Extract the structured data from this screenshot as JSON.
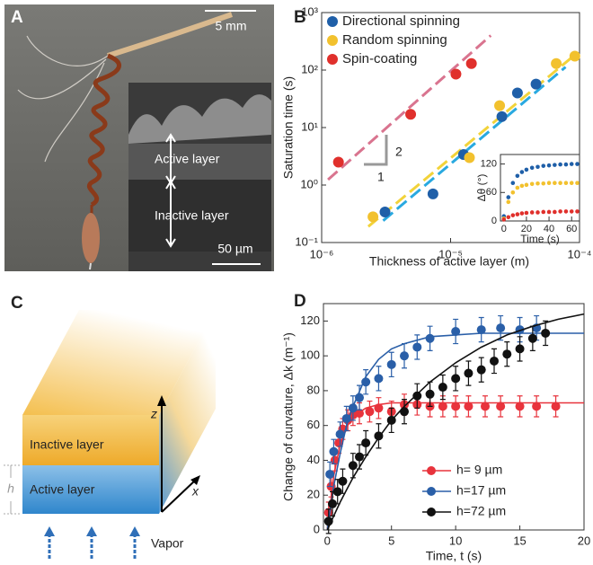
{
  "panel_labels": [
    "A",
    "B",
    "C",
    "D"
  ],
  "panel_a": {
    "scale_bar": "5 mm",
    "active_label": "Active layer",
    "inactive_label": "Inactive layer",
    "inset_scale_bar": "50 µm"
  },
  "panel_c": {
    "inactive_label": "Inactive layer",
    "active_label": "Active layer",
    "z_label": "z",
    "x_label": "x",
    "h_label": "h",
    "vapor_label": "Vapor"
  },
  "chart_data": [
    {
      "type": "scatter",
      "log_x": true,
      "log_y": true,
      "xlabel": "Thickness of active layer (m)",
      "ylabel": "Saturation time (s)",
      "xlim": [
        1e-06,
        0.0001
      ],
      "ylim": [
        0.1,
        1000
      ],
      "xticks": [
        {
          "value": 1e-06,
          "label": "10⁻⁶"
        },
        {
          "value": 1e-05,
          "label": "10⁻⁵"
        },
        {
          "value": 0.0001,
          "label": "10⁻⁴"
        }
      ],
      "yticks": [
        {
          "value": 0.1,
          "label": "10⁻¹"
        },
        {
          "value": 1,
          "label": "10⁰"
        },
        {
          "value": 10,
          "label": "10¹"
        },
        {
          "value": 100,
          "label": "10²"
        },
        {
          "value": 1000,
          "label": "10³"
        }
      ],
      "legend": "upper left",
      "series": [
        {
          "name": "Directional spinning",
          "color": "#1f5fa8",
          "x": [
            3.1e-06,
            7.3e-06,
            1.26e-05,
            2.5e-05,
            3.3e-05,
            4.6e-05
          ],
          "values": [
            0.34,
            0.7,
            3.4,
            15.5,
            40,
            57
          ]
        },
        {
          "name": "Random spinning",
          "color": "#f2c12e",
          "x": [
            2.5e-06,
            1.4e-05,
            2.4e-05,
            6.6e-05,
            9.2e-05
          ],
          "values": [
            0.28,
            3,
            24,
            130,
            175
          ]
        },
        {
          "name": "Spin-coating",
          "color": "#e0302c",
          "x": [
            1.35e-06,
            4.9e-06,
            1.1e-05,
            1.45e-05
          ],
          "values": [
            2.5,
            17,
            85,
            130
          ]
        }
      ],
      "fits": [
        {
          "color": "#d9748f",
          "x": [
            1.12e-06,
            2.05e-05
          ],
          "values": [
            1.24,
            400
          ]
        },
        {
          "color": "#29a9e0",
          "x": [
            3e-06,
            7.8e-05
          ],
          "values": [
            0.24,
            113
          ]
        },
        {
          "color": "#f2d33a",
          "x": [
            2.3e-06,
            9.5e-05
          ],
          "values": [
            0.19,
            195
          ]
        }
      ],
      "slope_labels": [
        "2",
        "1"
      ]
    },
    {
      "type": "scatter",
      "xlabel": "Time (s)",
      "ylabel": "Δθ (°)",
      "xlim": [
        -3,
        67
      ],
      "ylim": [
        0,
        140
      ],
      "xticks": [
        0,
        20,
        40,
        60
      ],
      "yticks": [
        0,
        60,
        120
      ],
      "x": [
        0,
        4,
        8,
        12,
        16,
        20,
        25,
        30,
        35,
        40,
        45,
        50,
        55,
        60,
        65
      ],
      "series": [
        {
          "color": "#1f5fa8",
          "values": [
            10,
            50,
            80,
            95,
            103,
            108,
            112,
            114,
            116,
            117,
            118,
            119,
            119,
            120,
            120
          ]
        },
        {
          "color": "#f2c12e",
          "values": [
            5,
            40,
            60,
            70,
            74,
            76,
            78,
            79,
            79,
            80,
            80,
            80,
            80,
            80,
            80
          ]
        },
        {
          "color": "#e0302c",
          "values": [
            3,
            8,
            12,
            14,
            16,
            17,
            18,
            18,
            19,
            19,
            19,
            20,
            20,
            20,
            20
          ]
        }
      ]
    },
    {
      "type": "scatter",
      "xlabel": "Time, t (s)",
      "ylabel": "Change of curvature, Δk (m⁻¹)",
      "xlim": [
        -0.3,
        20
      ],
      "ylim": [
        0,
        130
      ],
      "xticks": [
        0,
        5,
        10,
        15,
        20
      ],
      "yticks": [
        0,
        20,
        40,
        60,
        80,
        100,
        120
      ],
      "legend": "lower right",
      "fit_x": [
        0,
        0.5,
        1,
        1.5,
        2,
        3,
        4,
        5,
        6,
        8,
        10,
        12,
        14,
        16,
        18,
        20
      ],
      "series": [
        {
          "name": "h= 9 µm",
          "color": "#e8333c",
          "x": [
            0.1,
            0.3,
            0.6,
            0.9,
            1.2,
            1.6,
            2,
            2.5,
            3.3,
            4,
            5,
            6,
            7,
            8,
            9,
            10,
            11,
            12.3,
            13.5,
            15,
            16.3,
            17.8
          ],
          "values": [
            10,
            25,
            40,
            50,
            58,
            63,
            66,
            67,
            68,
            70,
            68,
            72,
            72,
            71,
            71,
            71,
            71,
            71,
            71,
            71,
            71,
            71
          ],
          "errors": [
            6,
            6,
            6,
            6,
            6,
            6,
            6,
            6,
            6,
            6,
            6,
            6,
            6,
            6,
            6,
            6,
            6,
            6,
            6,
            6,
            6,
            6
          ],
          "fit_values": [
            0,
            31,
            49,
            59,
            65,
            70,
            72,
            73,
            73,
            73,
            73,
            73,
            73,
            73,
            73,
            73
          ]
        },
        {
          "name": "h=17 µm",
          "color": "#2a5fa8",
          "x": [
            0.2,
            0.5,
            1,
            1.5,
            2,
            2.5,
            3,
            4,
            5,
            6,
            7,
            8,
            10,
            12,
            13.5,
            15,
            16.3
          ],
          "values": [
            32,
            45,
            55,
            64,
            70,
            76,
            85,
            87,
            95,
            100,
            105,
            110,
            114,
            115,
            116,
            115,
            116
          ],
          "errors": [
            7,
            7,
            7,
            7,
            7,
            7,
            7,
            7,
            7,
            7,
            7,
            7,
            7,
            7,
            7,
            7,
            7
          ],
          "fit_values": [
            0,
            25,
            44,
            60,
            71,
            88,
            98,
            104,
            107,
            111,
            112,
            113,
            113,
            113,
            113,
            113
          ]
        },
        {
          "name": "h=72 µm",
          "color": "#111111",
          "x": [
            0.1,
            0.4,
            0.8,
            1.2,
            2,
            2.5,
            3,
            4,
            5,
            6,
            7,
            8,
            9,
            10,
            11,
            12,
            13,
            14,
            15,
            16,
            17
          ],
          "values": [
            5,
            15,
            22,
            28,
            37,
            42,
            50,
            54,
            63,
            68,
            77,
            78,
            82,
            87,
            90,
            92,
            97,
            101,
            104,
            110,
            113
          ],
          "errors": [
            7,
            7,
            7,
            7,
            7,
            7,
            7,
            7,
            7,
            7,
            7,
            7,
            7,
            7,
            7,
            7,
            7,
            7,
            7,
            7,
            7
          ],
          "fit_values": [
            0,
            8,
            16,
            23,
            30,
            42,
            53,
            63,
            71,
            85,
            96,
            105,
            112,
            117,
            121,
            124
          ]
        }
      ]
    }
  ]
}
